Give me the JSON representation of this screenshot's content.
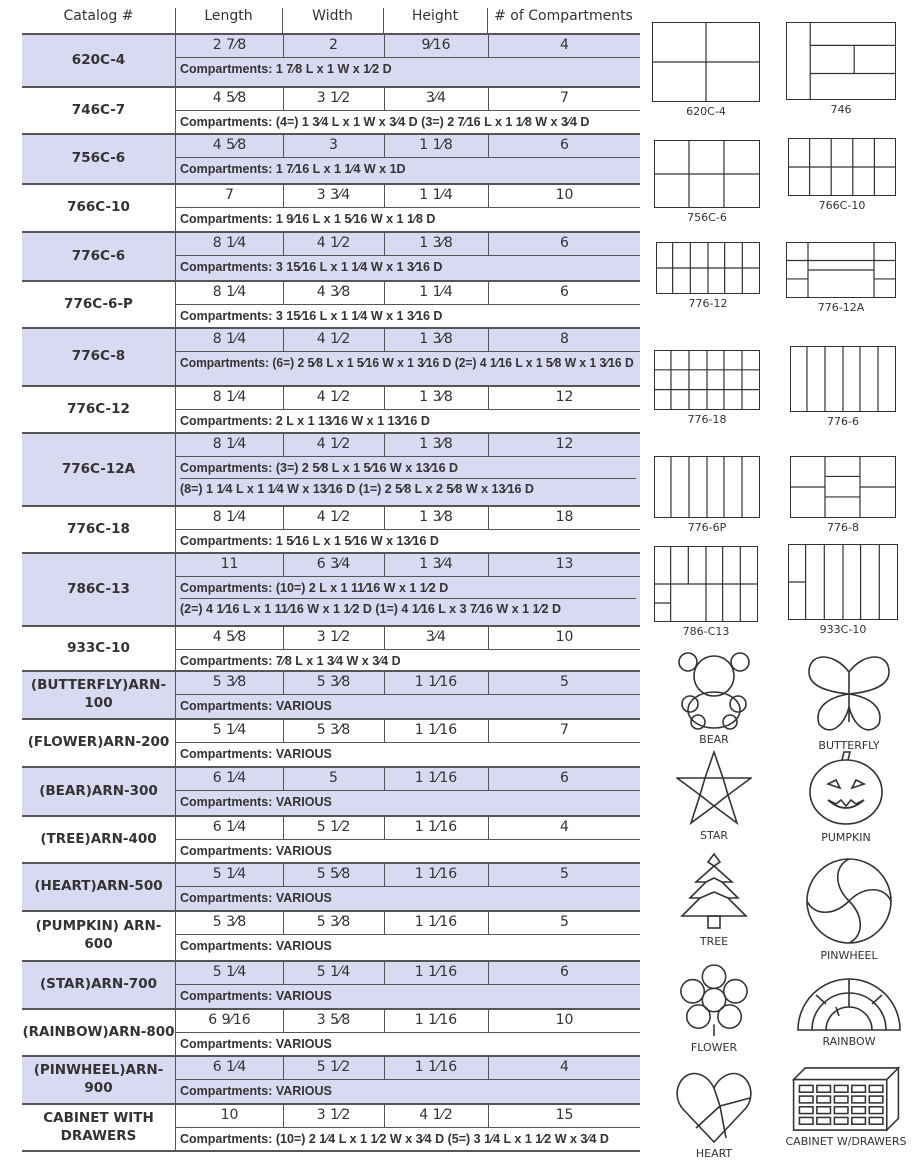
{
  "header": {
    "catalog": "Catalog #",
    "length": "Length",
    "width": "Width",
    "height": "Height",
    "compartments": "# of Compartments"
  },
  "rows": [
    {
      "catalog": "620C-4",
      "length": "2 7⁄8",
      "width": "2",
      "height": "9⁄16",
      "count": "4",
      "compartments": [
        "Compartments: 1 7⁄8 L x 1 W x 1⁄2 D"
      ]
    },
    {
      "catalog": "746C-7",
      "length": "4 5⁄8",
      "width": "3 1⁄2",
      "height": "3⁄4",
      "count": "7",
      "compartments": [
        "Compartments: (4=) 1 3⁄4 L x 1 W x 3⁄4 D  (3=) 2 7⁄16 L x 1 1⁄8 W x 3⁄4 D"
      ]
    },
    {
      "catalog": "756C-6",
      "length": "4 5⁄8",
      "width": "3",
      "height": "1 1⁄8",
      "count": "6",
      "compartments": [
        "Compartments: 1 7⁄16 L x 1 1⁄4 W x 1D"
      ]
    },
    {
      "catalog": "766C-10",
      "length": "7",
      "width": "3 3⁄4",
      "height": "1 1⁄4",
      "count": "10",
      "compartments": [
        "Compartments: 1 9⁄16 L x 1 5⁄16 W x 1 1⁄8 D"
      ]
    },
    {
      "catalog": "776C-6",
      "length": "8 1⁄4",
      "width": "4 1⁄2",
      "height": "1 3⁄8",
      "count": "6",
      "compartments": [
        "Compartments: 3 15⁄16 L x 1 1⁄4 W x 1 3⁄16 D"
      ]
    },
    {
      "catalog": "776C-6-P",
      "length": "8 1⁄4",
      "width": "4 3⁄8",
      "height": "1 1⁄4",
      "count": "6",
      "compartments": [
        "Compartments: 3 15⁄16 L x 1 1⁄4 W x 1 3⁄16 D"
      ]
    },
    {
      "catalog": "776C-8",
      "length": "8 1⁄4",
      "width": "4 1⁄2",
      "height": "1 3⁄8",
      "count": "8",
      "compartments": [
        "Compartments: (6=) 2 5⁄8 L x 1 5⁄16 W x 1 3⁄16 D  (2=) 4 1⁄16 L x 1 5⁄8 W x 1 3⁄16 D"
      ]
    },
    {
      "catalog": "776C-12",
      "length": "8 1⁄4",
      "width": "4 1⁄2",
      "height": "1 3⁄8",
      "count": "12",
      "compartments": [
        "Compartments: 2 L x 1 13⁄16 W x 1 13⁄16 D"
      ]
    },
    {
      "catalog": "776C-12A",
      "length": "8 1⁄4",
      "width": "4 1⁄2",
      "height": "1 3⁄8",
      "count": "12",
      "compartments": [
        "Compartments: (3=) 2 5⁄8 L x 1 5⁄16 W x 13⁄16 D",
        "(8=) 1 1⁄4 L x 1 1⁄4 W x 13⁄16 D  (1=) 2 5⁄8 L x 2 5⁄8 W x 13⁄16 D"
      ]
    },
    {
      "catalog": "776C-18",
      "length": "8 1⁄4",
      "width": "4 1⁄2",
      "height": "1 3⁄8",
      "count": "18",
      "compartments": [
        "Compartments: 1 5⁄16 L x 1 5⁄16 W x 13⁄16 D"
      ]
    },
    {
      "catalog": "786C-13",
      "length": "11",
      "width": "6 3⁄4",
      "height": "1 3⁄4",
      "count": "13",
      "compartments": [
        "Compartments: (10=) 2 L x 1 11⁄16 W x 1 1⁄2 D",
        "(2=) 4 1⁄16 L x 1 11⁄16 W x 1 1⁄2 D  (1=) 4 1⁄16 L x 3 7⁄16 W x 1 1⁄2 D"
      ]
    },
    {
      "catalog": "933C-10",
      "length": "4 5⁄8",
      "width": "3 1⁄2",
      "height": "3⁄4",
      "count": "10",
      "compartments": [
        "Compartments: 7⁄8 L x 1 3⁄4 W x 3⁄4 D"
      ]
    },
    {
      "catalog": "(BUTTERFLY)ARN-100",
      "length": "5 3⁄8",
      "width": "5 3⁄8",
      "height": "1 1⁄16",
      "count": "5",
      "compartments": [
        "Compartments: VARIOUS"
      ]
    },
    {
      "catalog": "(FLOWER)ARN-200",
      "length": "5 1⁄4",
      "width": "5 3⁄8",
      "height": "1 1⁄16",
      "count": "7",
      "compartments": [
        "Compartments: VARIOUS"
      ]
    },
    {
      "catalog": "(BEAR)ARN-300",
      "length": "6 1⁄4",
      "width": "5",
      "height": "1 1⁄16",
      "count": "6",
      "compartments": [
        "Compartments: VARIOUS"
      ]
    },
    {
      "catalog": "(TREE)ARN-400",
      "length": "6 1⁄4",
      "width": "5 1⁄2",
      "height": "1 1⁄16",
      "count": "4",
      "compartments": [
        "Compartments: VARIOUS"
      ]
    },
    {
      "catalog": "(HEART)ARN-500",
      "length": "5 1⁄4",
      "width": "5 5⁄8",
      "height": "1 1⁄16",
      "count": "5",
      "compartments": [
        "Compartments: VARIOUS"
      ]
    },
    {
      "catalog": "(PUMPKIN) ARN-600",
      "length": "5 3⁄8",
      "width": "5 3⁄8",
      "height": "1 1⁄16",
      "count": "5",
      "compartments": [
        "Compartments: VARIOUS"
      ]
    },
    {
      "catalog": "(STAR)ARN-700",
      "length": "5 1⁄4",
      "width": "5 1⁄4",
      "height": "1 1⁄16",
      "count": "6",
      "compartments": [
        "Compartments: VARIOUS"
      ]
    },
    {
      "catalog": "(RAINBOW)ARN-800",
      "length": "6 9⁄16",
      "width": "3 5⁄8",
      "height": "1 1⁄16",
      "count": "10",
      "compartments": [
        "Compartments: VARIOUS"
      ]
    },
    {
      "catalog": "(PINWHEEL)ARN-900",
      "length": "6 1⁄4",
      "width": "5 1⁄2",
      "height": "1 1⁄16",
      "count": "4",
      "compartments": [
        "Compartments: VARIOUS"
      ]
    },
    {
      "catalog": "CABINET WITH DRAWERS",
      "length": "10",
      "width": "3 1⁄2",
      "height": "4 1⁄2",
      "count": "15",
      "compartments": [
        "Compartments: (10=) 2 1⁄4 L x 1 1⁄2 W x 3⁄4 D  (5=) 3 1⁄4 L x 1 1⁄2 W x 3⁄4 D"
      ]
    }
  ],
  "figures": [
    {
      "label": "620C-4",
      "kind": "grid"
    },
    {
      "label": "746",
      "kind": "grid"
    },
    {
      "label": "756C-6",
      "kind": "grid"
    },
    {
      "label": "766C-10",
      "kind": "grid"
    },
    {
      "label": "776-12",
      "kind": "grid"
    },
    {
      "label": "776-12A",
      "kind": "grid"
    },
    {
      "label": "776-18",
      "kind": "grid"
    },
    {
      "label": "776-6",
      "kind": "grid"
    },
    {
      "label": "776-6P",
      "kind": "grid"
    },
    {
      "label": "776-8",
      "kind": "grid"
    },
    {
      "label": "786-C13",
      "kind": "grid"
    },
    {
      "label": "933C-10",
      "kind": "grid"
    },
    {
      "label": "BEAR",
      "kind": "bear"
    },
    {
      "label": "BUTTERFLY",
      "kind": "butterfly"
    },
    {
      "label": "STAR",
      "kind": "star"
    },
    {
      "label": "PUMPKIN",
      "kind": "pumpkin"
    },
    {
      "label": "TREE",
      "kind": "tree"
    },
    {
      "label": "PINWHEEL",
      "kind": "pinwheel"
    },
    {
      "label": "FLOWER",
      "kind": "flower"
    },
    {
      "label": "RAINBOW",
      "kind": "rainbow"
    },
    {
      "label": "HEART",
      "kind": "heart"
    },
    {
      "label": "CABINET W/DRAWERS",
      "kind": "cabinet"
    }
  ],
  "colors": {
    "row_shade": "#d9d9f2",
    "rule": "#555555",
    "italic_prefix": "#8a8aa8"
  }
}
